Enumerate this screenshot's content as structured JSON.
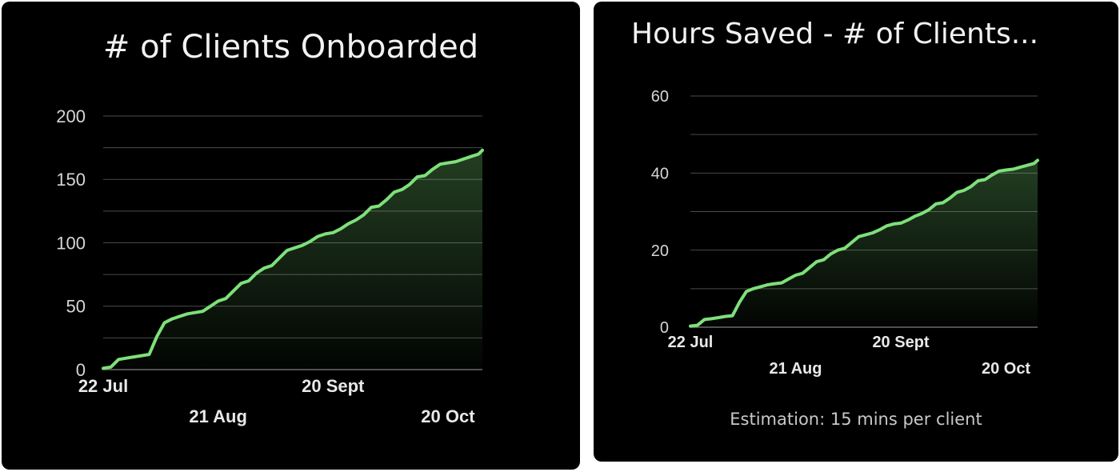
{
  "chart_data": [
    {
      "type": "area",
      "title": "# of Clients Onboarded",
      "xlabel": "",
      "ylabel": "",
      "ylim": [
        0,
        200
      ],
      "y_ticks": [
        0,
        50,
        100,
        150,
        200
      ],
      "x_ticks": [
        "22 Jul",
        "21 Aug",
        "20 Sept",
        "20 Oct"
      ],
      "x_range": [
        "2023-07-22",
        "2023-10-29"
      ],
      "grid": true,
      "legend": "none",
      "series": [
        {
          "color": "#7ee07a",
          "x": [
            "2023-07-22",
            "2023-07-24",
            "2023-07-26",
            "2023-07-28",
            "2023-07-30",
            "2023-08-01",
            "2023-08-03",
            "2023-08-05",
            "2023-08-07",
            "2023-08-09",
            "2023-08-11",
            "2023-08-13",
            "2023-08-15",
            "2023-08-17",
            "2023-08-19",
            "2023-08-21",
            "2023-08-23",
            "2023-08-25",
            "2023-08-27",
            "2023-08-29",
            "2023-08-31",
            "2023-09-02",
            "2023-09-04",
            "2023-09-06",
            "2023-09-08",
            "2023-09-10",
            "2023-09-12",
            "2023-09-14",
            "2023-09-16",
            "2023-09-18",
            "2023-09-20",
            "2023-09-22",
            "2023-09-24",
            "2023-09-26",
            "2023-09-28",
            "2023-09-30",
            "2023-10-02",
            "2023-10-04",
            "2023-10-06",
            "2023-10-08",
            "2023-10-10",
            "2023-10-12",
            "2023-10-14",
            "2023-10-16",
            "2023-10-18",
            "2023-10-20",
            "2023-10-22",
            "2023-10-24",
            "2023-10-26",
            "2023-10-28",
            "2023-10-29"
          ],
          "values": [
            1,
            2,
            8,
            9,
            10,
            11,
            12,
            26,
            37,
            40,
            42,
            44,
            45,
            46,
            50,
            54,
            56,
            62,
            68,
            70,
            76,
            80,
            82,
            88,
            94,
            96,
            98,
            101,
            105,
            107,
            108,
            111,
            115,
            118,
            122,
            128,
            129,
            134,
            140,
            142,
            146,
            152,
            153,
            158,
            162,
            163,
            164,
            166,
            168,
            170,
            173
          ]
        }
      ]
    },
    {
      "type": "area",
      "title": "Hours Saved - # of Clients...",
      "xlabel": "",
      "ylabel": "",
      "ylim": [
        0,
        60
      ],
      "y_ticks": [
        0,
        20,
        40,
        60
      ],
      "x_ticks": [
        "22 Jul",
        "21 Aug",
        "20 Sept",
        "20 Oct"
      ],
      "x_range": [
        "2023-07-22",
        "2023-10-29"
      ],
      "grid": true,
      "legend": "none",
      "annotation": "Estimation: 15 mins per client",
      "series": [
        {
          "color": "#7ee07a",
          "x": [
            "2023-07-22",
            "2023-07-24",
            "2023-07-26",
            "2023-07-28",
            "2023-07-30",
            "2023-08-01",
            "2023-08-03",
            "2023-08-05",
            "2023-08-07",
            "2023-08-09",
            "2023-08-11",
            "2023-08-13",
            "2023-08-15",
            "2023-08-17",
            "2023-08-19",
            "2023-08-21",
            "2023-08-23",
            "2023-08-25",
            "2023-08-27",
            "2023-08-29",
            "2023-08-31",
            "2023-09-02",
            "2023-09-04",
            "2023-09-06",
            "2023-09-08",
            "2023-09-10",
            "2023-09-12",
            "2023-09-14",
            "2023-09-16",
            "2023-09-18",
            "2023-09-20",
            "2023-09-22",
            "2023-09-24",
            "2023-09-26",
            "2023-09-28",
            "2023-09-30",
            "2023-10-02",
            "2023-10-04",
            "2023-10-06",
            "2023-10-08",
            "2023-10-10",
            "2023-10-12",
            "2023-10-14",
            "2023-10-16",
            "2023-10-18",
            "2023-10-20",
            "2023-10-22",
            "2023-10-24",
            "2023-10-26",
            "2023-10-28",
            "2023-10-29"
          ],
          "values": [
            0.3,
            0.5,
            2,
            2.2,
            2.5,
            2.8,
            3,
            6.5,
            9.3,
            10,
            10.5,
            11,
            11.3,
            11.5,
            12.5,
            13.5,
            14,
            15.5,
            17,
            17.5,
            19,
            20,
            20.5,
            22,
            23.5,
            24,
            24.5,
            25.3,
            26.3,
            26.8,
            27,
            27.8,
            28.8,
            29.5,
            30.5,
            32,
            32.3,
            33.5,
            35,
            35.5,
            36.5,
            38,
            38.3,
            39.5,
            40.5,
            40.8,
            41,
            41.5,
            42,
            42.5,
            43.3
          ]
        }
      ]
    }
  ]
}
